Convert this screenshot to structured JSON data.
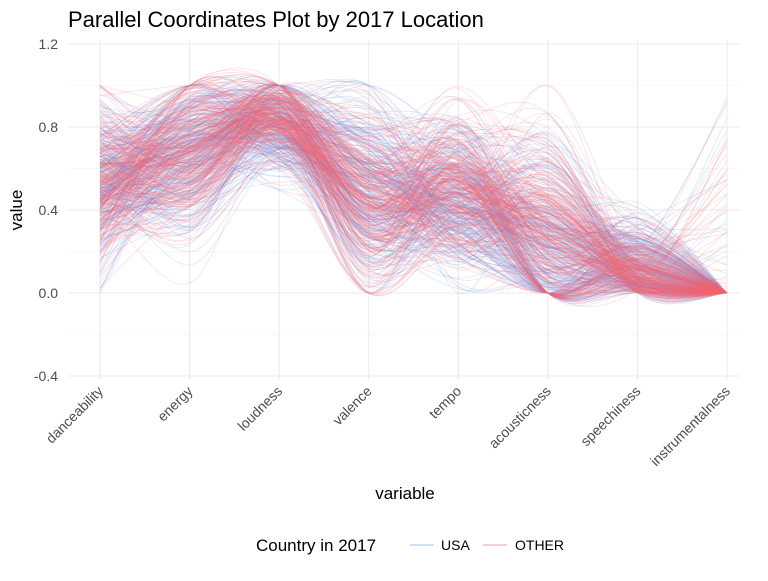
{
  "chart_data": {
    "type": "line",
    "title": "Parallel Coordinates Plot by 2017 Location",
    "xlabel": "variable",
    "ylabel": "value",
    "ylim": [
      -0.4,
      1.2
    ],
    "y_ticks": [
      "-0.4",
      "0.0",
      "0.4",
      "0.8",
      "1.2"
    ],
    "categories": [
      "danceability",
      "energy",
      "loudness",
      "valence",
      "tempo",
      "acousticness",
      "speechiness",
      "instrumentalness"
    ],
    "grid": true,
    "legend": {
      "title": "Country in 2017",
      "position": "bottom",
      "entries": [
        "USA",
        "OTHER"
      ]
    },
    "series": [
      {
        "name": "USA",
        "color": "#6495ED",
        "typical_profile": [
          0.55,
          0.7,
          0.82,
          0.5,
          0.45,
          0.25,
          0.1,
          0.02
        ],
        "profile_spread": [
          0.2,
          0.18,
          0.12,
          0.22,
          0.18,
          0.25,
          0.12,
          0.05
        ]
      },
      {
        "name": "OTHER",
        "color": "#F8626F",
        "typical_profile": [
          0.55,
          0.7,
          0.84,
          0.45,
          0.5,
          0.25,
          0.08,
          0.05
        ],
        "profile_spread": [
          0.18,
          0.18,
          0.1,
          0.22,
          0.18,
          0.25,
          0.1,
          0.12
        ]
      }
    ]
  }
}
